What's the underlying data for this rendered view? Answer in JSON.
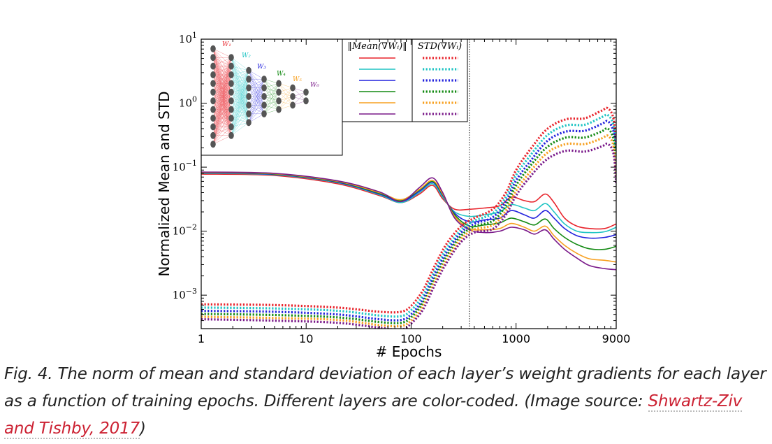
{
  "caption": {
    "prefix": "Fig. 4. The norm of mean and standard deviation of each layer’s weight gradients for each layer as a function of training epochs. Different layers are color-coded. (Image source: ",
    "link_text": "Shwartz-Ziv and Tishby, 2017",
    "suffix": ")"
  },
  "chart_data": {
    "type": "line",
    "x_scale": "log",
    "y_scale": "log",
    "xlabel": "# Epochs",
    "ylabel": "Normalized Mean and STD",
    "xlim": [
      1,
      9000
    ],
    "ylim": [
      0.0003,
      10
    ],
    "x_ticks": [
      {
        "value": 1,
        "label": "1"
      },
      {
        "value": 10,
        "label": "10"
      },
      {
        "value": 100,
        "label": "100"
      },
      {
        "value": 1000,
        "label": "1000"
      },
      {
        "value": 9000,
        "label": "9000"
      }
    ],
    "y_ticks": [
      {
        "value": 10,
        "base": "10",
        "exp": "1"
      },
      {
        "value": 1,
        "base": "10",
        "exp": "0"
      },
      {
        "value": 0.1,
        "base": "10",
        "exp": "−1"
      },
      {
        "value": 0.01,
        "base": "10",
        "exp": "−2"
      },
      {
        "value": 0.001,
        "base": "10",
        "exp": "−3"
      }
    ],
    "vline_x": 360,
    "legend": {
      "mean_header": "‖Mean(∇Wᵢ)‖",
      "std_header": "STD(∇Wᵢ)",
      "colors": [
        "#e8232b",
        "#1fc4c4",
        "#2222dd",
        "#138a13",
        "#f7a020",
        "#7a1a8a"
      ]
    },
    "inset_network": {
      "layer_labels": [
        "W₁",
        "W₂",
        "W₃",
        "W₄",
        "W₅",
        "W₆"
      ],
      "layer_sizes": [
        12,
        10,
        7,
        5,
        4,
        3,
        2
      ]
    },
    "series": [
      {
        "kind": "mean",
        "color": "#e8232b",
        "x": [
          1,
          5,
          20,
          50,
          80,
          120,
          160,
          200,
          260,
          360,
          500,
          700,
          900,
          1200,
          1500,
          1900,
          2300,
          2900,
          3800,
          5000,
          7000,
          9000
        ],
        "y": [
          0.078,
          0.074,
          0.055,
          0.036,
          0.028,
          0.038,
          0.052,
          0.032,
          0.022,
          0.022,
          0.023,
          0.025,
          0.034,
          0.03,
          0.029,
          0.038,
          0.028,
          0.016,
          0.012,
          0.011,
          0.011,
          0.013
        ]
      },
      {
        "kind": "mean",
        "color": "#1fc4c4",
        "x": [
          1,
          5,
          20,
          50,
          80,
          120,
          160,
          200,
          260,
          360,
          500,
          700,
          900,
          1200,
          1500,
          1900,
          2300,
          2900,
          3800,
          5000,
          7000,
          9000
        ],
        "y": [
          0.08,
          0.076,
          0.057,
          0.037,
          0.028,
          0.04,
          0.055,
          0.034,
          0.02,
          0.017,
          0.018,
          0.02,
          0.026,
          0.023,
          0.021,
          0.027,
          0.02,
          0.013,
          0.01,
          0.0095,
          0.0098,
          0.0115
        ]
      },
      {
        "kind": "mean",
        "color": "#2222dd",
        "x": [
          1,
          5,
          20,
          50,
          80,
          120,
          160,
          200,
          260,
          360,
          500,
          700,
          900,
          1200,
          1500,
          1900,
          2300,
          2900,
          3800,
          5000,
          7000,
          9000
        ],
        "y": [
          0.081,
          0.077,
          0.058,
          0.038,
          0.029,
          0.042,
          0.058,
          0.036,
          0.019,
          0.014,
          0.015,
          0.016,
          0.021,
          0.018,
          0.016,
          0.021,
          0.016,
          0.011,
          0.0085,
          0.0078,
          0.008,
          0.0088
        ]
      },
      {
        "kind": "mean",
        "color": "#138a13",
        "x": [
          1,
          5,
          20,
          50,
          80,
          120,
          160,
          200,
          260,
          360,
          500,
          700,
          900,
          1200,
          1500,
          1900,
          2300,
          2900,
          3800,
          5000,
          7000,
          9000
        ],
        "y": [
          0.082,
          0.078,
          0.059,
          0.039,
          0.03,
          0.044,
          0.06,
          0.037,
          0.018,
          0.012,
          0.0125,
          0.0135,
          0.016,
          0.014,
          0.0125,
          0.0155,
          0.011,
          0.008,
          0.0062,
          0.0053,
          0.0052,
          0.0058
        ]
      },
      {
        "kind": "mean",
        "color": "#f7a020",
        "x": [
          1,
          5,
          20,
          50,
          80,
          120,
          160,
          200,
          260,
          360,
          500,
          700,
          900,
          1200,
          1500,
          1900,
          2300,
          2900,
          3800,
          5000,
          7000,
          9000
        ],
        "y": [
          0.083,
          0.079,
          0.06,
          0.04,
          0.031,
          0.045,
          0.062,
          0.038,
          0.017,
          0.011,
          0.0105,
          0.011,
          0.0132,
          0.0115,
          0.01,
          0.012,
          0.0085,
          0.006,
          0.0045,
          0.0037,
          0.0035,
          0.0033
        ]
      },
      {
        "kind": "mean",
        "color": "#7a1a8a",
        "x": [
          1,
          5,
          20,
          50,
          80,
          120,
          160,
          200,
          260,
          360,
          500,
          700,
          900,
          1200,
          1500,
          1900,
          2300,
          2900,
          3800,
          5000,
          7000,
          9000
        ],
        "y": [
          0.084,
          0.08,
          0.061,
          0.041,
          0.029,
          0.048,
          0.068,
          0.04,
          0.016,
          0.0105,
          0.0095,
          0.01,
          0.0115,
          0.0105,
          0.009,
          0.0105,
          0.0075,
          0.0052,
          0.0038,
          0.0029,
          0.0026,
          0.0025
        ]
      },
      {
        "kind": "std",
        "color": "#e8232b",
        "x": [
          1,
          5,
          20,
          50,
          80,
          100,
          130,
          170,
          220,
          300,
          400,
          600,
          800,
          1000,
          1400,
          2000,
          3000,
          4500,
          6500,
          7500,
          8500,
          9000
        ],
        "y": [
          0.00072,
          0.0007,
          0.00064,
          0.00055,
          0.00055,
          0.00068,
          0.0012,
          0.003,
          0.0065,
          0.012,
          0.016,
          0.022,
          0.04,
          0.09,
          0.2,
          0.4,
          0.56,
          0.58,
          0.76,
          0.83,
          0.56,
          0.19
        ]
      },
      {
        "kind": "std",
        "color": "#1fc4c4",
        "x": [
          1,
          5,
          20,
          50,
          80,
          100,
          130,
          170,
          220,
          300,
          400,
          600,
          800,
          1000,
          1400,
          2000,
          3000,
          4500,
          6500,
          7500,
          8500,
          9000
        ],
        "y": [
          0.00064,
          0.00062,
          0.00057,
          0.00048,
          0.00047,
          0.00058,
          0.001,
          0.0025,
          0.0055,
          0.0105,
          0.0145,
          0.019,
          0.034,
          0.075,
          0.16,
          0.32,
          0.45,
          0.46,
          0.6,
          0.65,
          0.44,
          0.15
        ]
      },
      {
        "kind": "std",
        "color": "#2222dd",
        "x": [
          1,
          5,
          20,
          50,
          80,
          100,
          130,
          170,
          220,
          300,
          400,
          600,
          800,
          1000,
          1400,
          2000,
          3000,
          4500,
          6500,
          7500,
          8500,
          9000
        ],
        "y": [
          0.00057,
          0.00055,
          0.0005,
          0.00042,
          0.00041,
          0.0005,
          0.00087,
          0.0022,
          0.0048,
          0.0095,
          0.013,
          0.0165,
          0.029,
          0.062,
          0.13,
          0.26,
          0.36,
          0.37,
          0.47,
          0.52,
          0.35,
          0.12
        ]
      },
      {
        "kind": "std",
        "color": "#138a13",
        "x": [
          1,
          5,
          20,
          50,
          80,
          100,
          130,
          170,
          220,
          300,
          400,
          600,
          800,
          1000,
          1400,
          2000,
          3000,
          4500,
          6500,
          7500,
          8500,
          9000
        ],
        "y": [
          0.00051,
          0.00049,
          0.00045,
          0.00038,
          0.00037,
          0.00045,
          0.00077,
          0.0019,
          0.0042,
          0.0085,
          0.0118,
          0.0145,
          0.025,
          0.052,
          0.11,
          0.21,
          0.29,
          0.29,
          0.36,
          0.4,
          0.27,
          0.095
        ]
      },
      {
        "kind": "std",
        "color": "#f7a020",
        "x": [
          1,
          5,
          20,
          50,
          80,
          100,
          130,
          170,
          220,
          300,
          400,
          600,
          800,
          1000,
          1400,
          2000,
          3000,
          4500,
          6500,
          7500,
          8500,
          9000
        ],
        "y": [
          0.00046,
          0.00044,
          0.00041,
          0.00034,
          0.00033,
          0.0004,
          0.00068,
          0.0017,
          0.0037,
          0.0076,
          0.0106,
          0.0125,
          0.021,
          0.043,
          0.09,
          0.17,
          0.23,
          0.23,
          0.28,
          0.31,
          0.21,
          0.075
        ]
      },
      {
        "kind": "std",
        "color": "#7a1a8a",
        "x": [
          1,
          5,
          20,
          50,
          80,
          100,
          130,
          170,
          220,
          300,
          400,
          600,
          800,
          1000,
          1400,
          2000,
          3000,
          4500,
          6500,
          7500,
          8500,
          9000
        ],
        "y": [
          0.00042,
          0.0004,
          0.00037,
          0.00031,
          0.00029,
          0.00036,
          0.0006,
          0.0015,
          0.0033,
          0.0068,
          0.0095,
          0.0108,
          0.018,
          0.036,
          0.075,
          0.135,
          0.18,
          0.175,
          0.21,
          0.23,
          0.16,
          0.055
        ]
      }
    ]
  }
}
